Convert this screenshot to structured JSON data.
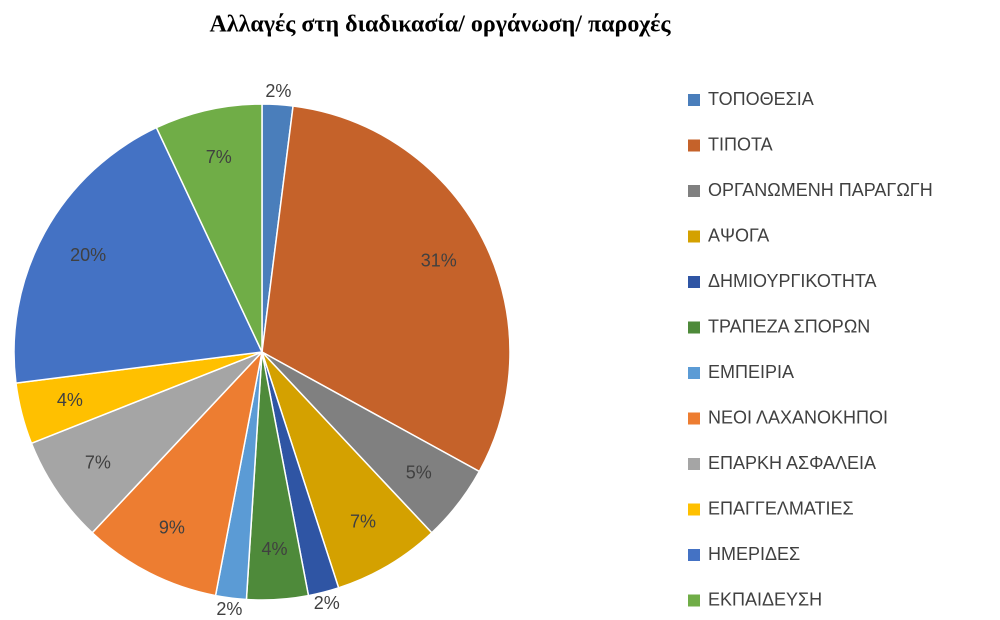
{
  "chart_data": {
    "type": "pie",
    "title": "Αλλαγές στη διαδικασία/ οργάνωση/ παροχές",
    "categories": [
      "ΤΟΠΟΘΕΣΙΑ",
      "ΤΙΠΟΤΑ",
      "ΟΡΓΑΝΩΜΕΝΗ ΠΑΡΑΓΩΓΗ",
      "ΑΨΟΓΑ",
      "ΔΗΜΙΟΥΡΓΙΚΟΤΗΤΑ",
      "ΤΡΑΠΕΖΑ ΣΠΟΡΩΝ",
      "ΕΜΠΕΙΡΙΑ",
      "ΝΕΟΙ ΛΑΧΑΝΟΚΗΠΟΙ",
      "ΕΠΑΡΚΗ ΑΣΦΑΛΕΙΑ",
      "ΕΠΑΓΓΕΛΜΑΤΙΕΣ",
      "ΗΜΕΡΙΔΕΣ",
      "ΕΚΠΑΙΔΕΥΣΗ"
    ],
    "values": [
      2,
      31,
      5,
      7,
      2,
      4,
      2,
      9,
      7,
      4,
      20,
      7
    ],
    "value_labels": [
      "2%",
      "31%",
      "5%",
      "7%",
      "2%",
      "4%",
      "2%",
      "9%",
      "7%",
      "4%",
      "20%",
      "7%"
    ],
    "colors": [
      "#4a7ebb",
      "#c5622a",
      "#808080",
      "#d4a100",
      "#2f55a4",
      "#4e8a3a",
      "#5b9bd5",
      "#ed7d31",
      "#a5a5a5",
      "#ffc000",
      "#4472c4",
      "#70ad47"
    ],
    "legend": "right"
  }
}
